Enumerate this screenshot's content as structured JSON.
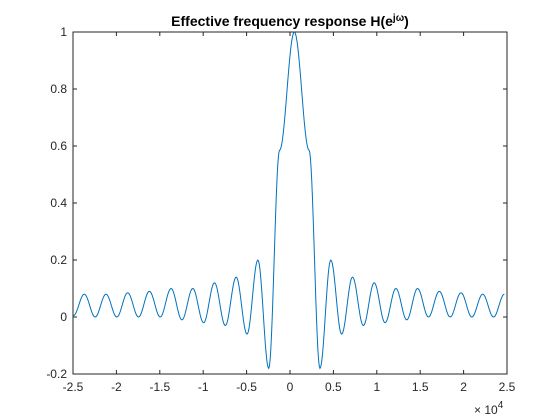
{
  "chart_data": {
    "type": "line",
    "title": "Effective frequency response H(e",
    "title_sup": "jω",
    "title_close": ")",
    "xlabel": "",
    "ylabel": "",
    "xlim": [
      -25000,
      25000
    ],
    "ylim": [
      -0.2,
      1
    ],
    "x_multiplier_base": "× 10",
    "x_multiplier_exp": "4",
    "x_ticks": [
      -25000,
      -20000,
      -15000,
      -10000,
      -5000,
      0,
      5000,
      10000,
      15000,
      20000,
      25000
    ],
    "x_tick_labels": [
      "-2.5",
      "-2",
      "-1.5",
      "-1",
      "-0.5",
      "0",
      "0.5",
      "1",
      "1.5",
      "2",
      "2.5"
    ],
    "y_ticks": [
      -0.2,
      0,
      0.2,
      0.4,
      0.6,
      0.8,
      1
    ],
    "y_tick_labels": [
      "-0.2",
      "0",
      "0.2",
      "0.4",
      "0.6",
      "0.8",
      "1"
    ],
    "grid": false,
    "colors": {
      "line": "#0072bd",
      "axes": "#262626"
    },
    "series": [
      {
        "x": [
          -24950,
          -23700,
          -22450,
          -21200,
          -19950,
          -18700,
          -17450,
          -16200,
          -14950,
          -13700,
          -12450,
          -11200,
          -9950,
          -8700,
          -7450,
          -6200,
          -4950,
          -3700,
          -2450,
          -1200,
          500,
          2200,
          3450,
          4700,
          5950,
          7200,
          8450,
          9700,
          10950,
          12200,
          13450,
          14700,
          15950,
          17200,
          18450,
          19700,
          20950,
          22200,
          23450,
          24700
        ],
        "y": [
          0.005,
          0.08,
          0.0,
          0.08,
          0.0,
          0.085,
          0.0,
          0.09,
          0.0,
          0.1,
          -0.01,
          0.1,
          -0.02,
          0.12,
          -0.03,
          0.14,
          -0.06,
          0.2,
          -0.18,
          0.585,
          1.0,
          0.585,
          -0.18,
          0.2,
          -0.06,
          0.14,
          -0.03,
          0.12,
          -0.02,
          0.1,
          -0.01,
          0.1,
          0.0,
          0.09,
          0.0,
          0.085,
          0.0,
          0.08,
          0.0,
          0.08
        ]
      }
    ]
  }
}
